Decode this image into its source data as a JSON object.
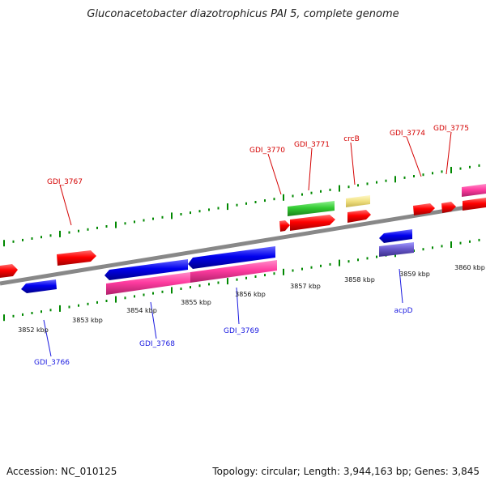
{
  "title": "Gluconacetobacter diazotrophicus PAI 5, complete genome",
  "accession": "Accession: NC_010125",
  "summary": "Topology: circular; Length: 3,944,163 bp; Genes: 3,845",
  "colors": {
    "forward_gene": "#ff0000",
    "reverse_gene": "#0000ff",
    "cds_pink": "#ff3ca0",
    "green_gene": "#33cc33",
    "yellow_gene": "#f0e080",
    "purple_gene": "#6a5acd",
    "backbone": "#888888",
    "ticks": "#008800",
    "forward_label": "#d40000",
    "reverse_label": "#1a1ae0"
  },
  "scale_labels": [
    "3852 kbp",
    "3853 kbp",
    "3854 kbp",
    "3855 kbp",
    "3856 kbp",
    "3857 kbp",
    "3858 kbp",
    "3859 kbp",
    "3860 kbp"
  ],
  "forward_labels": [
    "GDI_3767",
    "GDI_3770",
    "GDI_3771",
    "crcB",
    "GDI_3774",
    "GDI_3775"
  ],
  "reverse_labels": [
    "GDI_3766",
    "GDI_3768",
    "GDI_3769",
    "acpD"
  ]
}
